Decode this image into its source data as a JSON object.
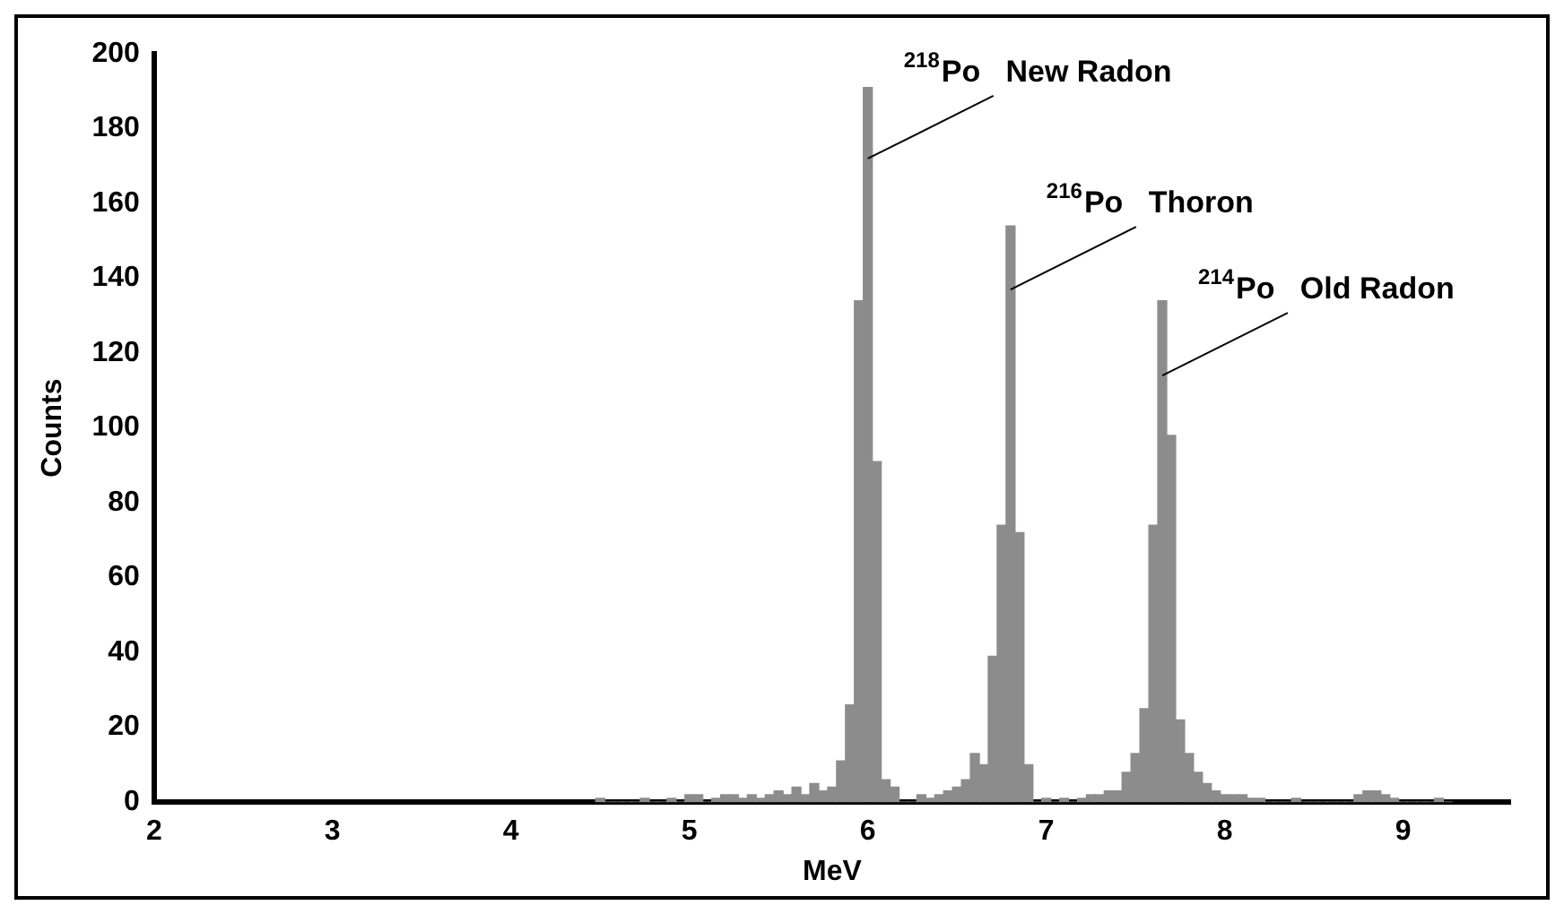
{
  "chart_data": {
    "type": "histogram",
    "xlabel": "MeV",
    "ylabel": "Counts",
    "bins": [
      4.475,
      4.525,
      4.575,
      4.625,
      4.675,
      4.725,
      4.775,
      4.825,
      4.875,
      4.925,
      4.975,
      5.025,
      5.075,
      5.125,
      5.175,
      5.225,
      5.275,
      5.325,
      5.375,
      5.425,
      5.475,
      5.525,
      5.575,
      5.625,
      5.675,
      5.725,
      5.775,
      5.825,
      5.875,
      5.925,
      5.975,
      6.025,
      6.075,
      6.125,
      6.175,
      6.225,
      6.275,
      6.325,
      6.375,
      6.425,
      6.475,
      6.525,
      6.575,
      6.625,
      6.675,
      6.725,
      6.775,
      6.825,
      6.875,
      6.925,
      6.975,
      7.025,
      7.075,
      7.125,
      7.175,
      7.225,
      7.275,
      7.325,
      7.375,
      7.425,
      7.475,
      7.525,
      7.575,
      7.625,
      7.675,
      7.725,
      7.775,
      7.825,
      7.875,
      7.925,
      7.975,
      8.025,
      8.075,
      8.125,
      8.175,
      8.225,
      8.275,
      8.325,
      8.375,
      8.425,
      8.475,
      8.525,
      8.575,
      8.625,
      8.675,
      8.725,
      8.775,
      8.825,
      8.875,
      8.925,
      8.975,
      9.025,
      9.075,
      9.125,
      9.175,
      9.225,
      9.275
    ],
    "values": [
      1,
      0,
      0,
      0,
      0,
      1,
      0,
      0,
      1,
      0,
      2,
      2,
      0,
      1,
      2,
      2,
      1,
      2,
      1,
      2,
      3,
      2,
      4,
      2,
      5,
      3,
      4,
      11,
      26,
      134,
      191,
      91,
      6,
      4,
      0,
      0,
      2,
      1,
      2,
      3,
      4,
      6,
      13,
      10,
      39,
      74,
      154,
      72,
      10,
      0,
      1,
      0,
      1,
      0,
      1,
      2,
      2,
      3,
      3,
      8,
      13,
      25,
      74,
      134,
      98,
      22,
      13,
      8,
      5,
      3,
      2,
      2,
      2,
      1,
      1,
      0,
      0,
      0,
      1,
      0,
      0,
      0,
      0,
      0,
      0,
      2,
      3,
      3,
      2,
      1,
      0,
      0,
      0,
      0,
      1,
      0
    ],
    "color": "#8c8c8c",
    "xlim": [
      2,
      9.6
    ],
    "xticks": [
      2,
      3,
      4,
      5,
      6,
      7,
      8,
      9
    ],
    "ylim": [
      0,
      200
    ],
    "yticks": [
      0,
      20,
      40,
      60,
      80,
      100,
      120,
      140,
      160,
      180,
      200
    ],
    "grid": false,
    "legend": false,
    "annotations": [
      {
        "text": "$^{218}$Po   New Radon",
        "x": 6,
        "y": 172
      },
      {
        "text": "$^{216}$Po   Thoron",
        "x": 6.8,
        "y": 137
      },
      {
        "text": "$^{214}$Po   Old Radon",
        "x": 7.65,
        "y": 114
      }
    ]
  }
}
